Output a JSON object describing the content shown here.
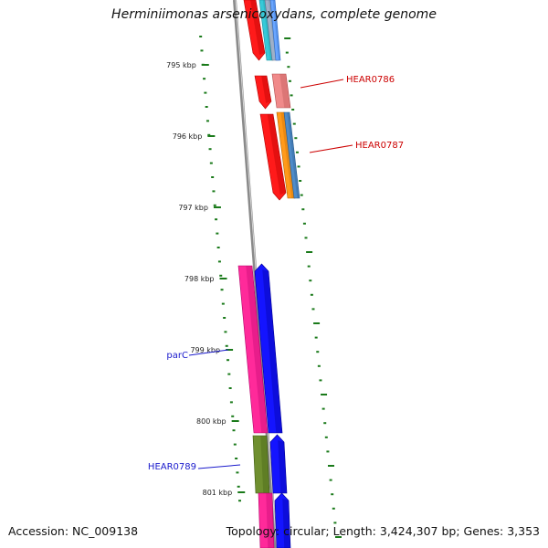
{
  "title": "Herminiimonas arsenicoxydans, complete genome",
  "footer": {
    "accession": "Accession: NC_009138",
    "summary": "Topology: circular; Length: 3,424,307 bp; Genes: 3,353"
  },
  "colors": {
    "backbone": "#8a8a8a",
    "tick": "#1a7a1a",
    "label_red": "#cc0000",
    "label_blue": "#1a1acc"
  },
  "ticks": [
    {
      "label": "795 kbp"
    },
    {
      "label": "796 kbp"
    },
    {
      "label": "797 kbp"
    },
    {
      "label": "798 kbp"
    },
    {
      "label": "799 kbp"
    },
    {
      "label": "800 kbp"
    },
    {
      "label": "801 kbp"
    }
  ],
  "gene_labels": [
    {
      "text": "HEAR0786",
      "color": "#cc0000"
    },
    {
      "text": "HEAR0787",
      "color": "#cc0000"
    },
    {
      "text": "parC",
      "color": "#1a1acc"
    },
    {
      "text": "HEAR0789",
      "color": "#1a1acc"
    }
  ]
}
